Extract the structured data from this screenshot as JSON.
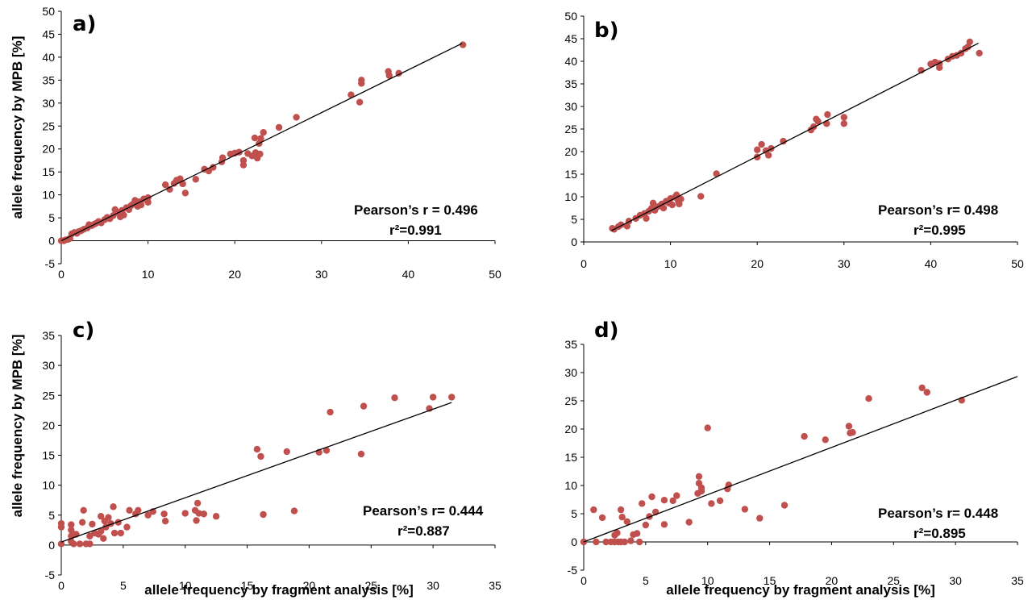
{
  "figure": {
    "ylabel_top": "allele frequency by MPB [%]",
    "ylabel_bottom": "allele frequency by MPB [%]",
    "xlabel_c": "allele frequency by fragment analysis [%]",
    "xlabel_d": "allele frequency by fragment analysis [%]"
  },
  "chart_data": [
    {
      "type": "scatter",
      "panel": "a)",
      "pearson": "Pearson’s r = 0.496",
      "r2": "r²=0.991",
      "xlim": [
        0,
        50
      ],
      "ylim": [
        -5,
        50
      ],
      "xticks": [
        0,
        10,
        20,
        30,
        40,
        50
      ],
      "yticks": [
        -5,
        0,
        5,
        10,
        15,
        20,
        25,
        30,
        35,
        40,
        45,
        50
      ],
      "point_color": "#c0504d",
      "trendline": [
        [
          0,
          0
        ],
        [
          46.2,
          43.0
        ]
      ],
      "points": [
        [
          0,
          0
        ],
        [
          0.3,
          0
        ],
        [
          0.5,
          0.2
        ],
        [
          0.8,
          0.3
        ],
        [
          1,
          0.5
        ],
        [
          1.2,
          1.5
        ],
        [
          1.5,
          1.8
        ],
        [
          1.8,
          1.6
        ],
        [
          2,
          2
        ],
        [
          2.3,
          2.2
        ],
        [
          2.6,
          2.5
        ],
        [
          3,
          2.8
        ],
        [
          3.2,
          3.5
        ],
        [
          3.5,
          3.3
        ],
        [
          3.8,
          3.6
        ],
        [
          4,
          3.8
        ],
        [
          4.3,
          4.2
        ],
        [
          4.6,
          3.9
        ],
        [
          5,
          4.6
        ],
        [
          5.3,
          5.1
        ],
        [
          5.6,
          4.8
        ],
        [
          6,
          5.5
        ],
        [
          6.2,
          6.8
        ],
        [
          6.5,
          6.2
        ],
        [
          6.8,
          5.2
        ],
        [
          7,
          6.6
        ],
        [
          7.2,
          5.6
        ],
        [
          7.5,
          7.2
        ],
        [
          7.8,
          6.8
        ],
        [
          8,
          7.6
        ],
        [
          8.2,
          7.9
        ],
        [
          8.5,
          8.8
        ],
        [
          8.8,
          7.5
        ],
        [
          9,
          8.5
        ],
        [
          9.2,
          7.8
        ],
        [
          9.5,
          9.1
        ],
        [
          10,
          8.4
        ],
        [
          10,
          9.4
        ],
        [
          12,
          12.2
        ],
        [
          12.5,
          11.2
        ],
        [
          13,
          12.5
        ],
        [
          13.3,
          13.2
        ],
        [
          13.7,
          13.5
        ],
        [
          14,
          12.4
        ],
        [
          14.3,
          10.4
        ],
        [
          15.5,
          13.4
        ],
        [
          16.5,
          15.6
        ],
        [
          17,
          15.2
        ],
        [
          17.5,
          16
        ],
        [
          18.5,
          17.2
        ],
        [
          18.6,
          18.1
        ],
        [
          19.5,
          18.9
        ],
        [
          20,
          19.1
        ],
        [
          20.5,
          19.3
        ],
        [
          21,
          16.5
        ],
        [
          21,
          17.5
        ],
        [
          21.5,
          19
        ],
        [
          22,
          18.5
        ],
        [
          22.4,
          19.2
        ],
        [
          22.6,
          18
        ],
        [
          22.9,
          18.9
        ],
        [
          22.3,
          22.4
        ],
        [
          22.8,
          21.2
        ],
        [
          23,
          22.3
        ],
        [
          23.3,
          23.6
        ],
        [
          25.1,
          24.7
        ],
        [
          27.1,
          26.9
        ],
        [
          33.4,
          31.8
        ],
        [
          34.4,
          30.2
        ],
        [
          34.6,
          34.3
        ],
        [
          34.6,
          35
        ],
        [
          37.7,
          36.9
        ],
        [
          37.8,
          36
        ],
        [
          38.9,
          36.5
        ],
        [
          46.3,
          42.7
        ]
      ]
    },
    {
      "type": "scatter",
      "panel": "b)",
      "pearson": "Pearson’s r= 0.498",
      "r2": "r²=0.995",
      "xlim": [
        0,
        50
      ],
      "ylim": [
        0,
        50
      ],
      "xticks": [
        0,
        10,
        20,
        30,
        40,
        50
      ],
      "yticks": [
        0,
        5,
        10,
        15,
        20,
        25,
        30,
        35,
        40,
        45,
        50
      ],
      "point_color": "#c0504d",
      "trendline": [
        [
          3.2,
          2.5
        ],
        [
          45.5,
          44.0
        ]
      ],
      "points": [
        [
          3.3,
          3
        ],
        [
          3.5,
          2.8
        ],
        [
          4,
          3.4
        ],
        [
          4.3,
          3.8
        ],
        [
          5,
          3.5
        ],
        [
          5.2,
          4.6
        ],
        [
          6,
          5.2
        ],
        [
          6.5,
          5.9
        ],
        [
          7,
          6.3
        ],
        [
          7.2,
          5.2
        ],
        [
          7.5,
          6.8
        ],
        [
          7.8,
          7.4
        ],
        [
          8,
          8.6
        ],
        [
          8.2,
          7
        ],
        [
          8.5,
          7.8
        ],
        [
          8.8,
          8
        ],
        [
          9,
          8.4
        ],
        [
          9.2,
          7.5
        ],
        [
          9.5,
          9
        ],
        [
          9.8,
          8.6
        ],
        [
          10,
          9.6
        ],
        [
          10.2,
          8.2
        ],
        [
          10.5,
          9.9
        ],
        [
          10.7,
          10.4
        ],
        [
          10.9,
          9
        ],
        [
          11,
          8.4
        ],
        [
          11.2,
          9.5
        ],
        [
          13.5,
          10.1
        ],
        [
          15.3,
          15.1
        ],
        [
          20,
          18.8
        ],
        [
          20,
          20.4
        ],
        [
          20.5,
          21.6
        ],
        [
          21,
          20.2
        ],
        [
          21.3,
          19.2
        ],
        [
          21.6,
          20.7
        ],
        [
          23,
          22.3
        ],
        [
          26.2,
          24.8
        ],
        [
          26.5,
          25.5
        ],
        [
          26.8,
          27.2
        ],
        [
          27,
          26.7
        ],
        [
          28,
          26.2
        ],
        [
          28.1,
          28.2
        ],
        [
          30,
          26.2
        ],
        [
          30,
          27.6
        ],
        [
          38.9,
          38
        ],
        [
          40,
          39.4
        ],
        [
          40.5,
          39.8
        ],
        [
          41,
          38.6
        ],
        [
          41,
          39.5
        ],
        [
          42,
          40.5
        ],
        [
          42.5,
          41.1
        ],
        [
          43,
          41.3
        ],
        [
          43.5,
          41.8
        ],
        [
          44,
          42.8
        ],
        [
          44.3,
          43.2
        ],
        [
          44.5,
          44.3
        ],
        [
          45.6,
          41.8
        ]
      ]
    },
    {
      "type": "scatter",
      "panel": "c)",
      "pearson": "Pearson’s r= 0.444",
      "r2": "r²=0.887",
      "xlabel": "allele frequency by fragment analysis [%]",
      "xlim": [
        0,
        35
      ],
      "ylim": [
        -5,
        35
      ],
      "xticks": [
        0,
        5,
        10,
        15,
        20,
        25,
        30,
        35
      ],
      "yticks": [
        -5,
        0,
        5,
        10,
        15,
        20,
        25,
        30,
        35
      ],
      "point_color": "#c0504d",
      "trendline": [
        [
          0,
          0.5
        ],
        [
          31.5,
          23.8
        ]
      ],
      "points": [
        [
          0,
          0.2
        ],
        [
          0,
          3
        ],
        [
          0,
          3.6
        ],
        [
          0.8,
          3.4
        ],
        [
          0.8,
          2.5
        ],
        [
          0.8,
          1.5
        ],
        [
          0.8,
          0.6
        ],
        [
          1,
          0.2
        ],
        [
          1.2,
          1.8
        ],
        [
          1.5,
          0.2
        ],
        [
          1.7,
          3.8
        ],
        [
          1.8,
          5.8
        ],
        [
          2,
          0.2
        ],
        [
          2.3,
          1.5
        ],
        [
          2.3,
          0.2
        ],
        [
          2.5,
          3.5
        ],
        [
          2.7,
          2
        ],
        [
          3,
          1.8
        ],
        [
          3.2,
          4.8
        ],
        [
          3.2,
          2.3
        ],
        [
          3.4,
          1.1
        ],
        [
          3.5,
          4
        ],
        [
          3.6,
          3
        ],
        [
          3.8,
          4.6
        ],
        [
          4,
          3.6
        ],
        [
          4.2,
          6.4
        ],
        [
          4.3,
          2
        ],
        [
          4.6,
          3.8
        ],
        [
          4.8,
          2
        ],
        [
          5.3,
          3
        ],
        [
          5.5,
          5.8
        ],
        [
          6,
          5.2
        ],
        [
          6.2,
          5.8
        ],
        [
          7,
          5
        ],
        [
          7.4,
          5.6
        ],
        [
          8.3,
          5.2
        ],
        [
          8.4,
          4
        ],
        [
          10,
          5.3
        ],
        [
          10.8,
          5.8
        ],
        [
          10.9,
          4.1
        ],
        [
          11,
          7
        ],
        [
          11.1,
          5.3
        ],
        [
          11.5,
          5.2
        ],
        [
          12.5,
          4.8
        ],
        [
          15.8,
          16
        ],
        [
          16.1,
          14.8
        ],
        [
          16.3,
          5.1
        ],
        [
          18.2,
          15.6
        ],
        [
          18.8,
          5.7
        ],
        [
          20.8,
          15.5
        ],
        [
          21.4,
          15.8
        ],
        [
          21.7,
          22.2
        ],
        [
          24.2,
          15.2
        ],
        [
          24.4,
          23.2
        ],
        [
          26.9,
          24.6
        ],
        [
          29.7,
          22.8
        ],
        [
          30,
          24.7
        ],
        [
          31.5,
          24.7
        ]
      ]
    },
    {
      "type": "scatter",
      "panel": "d)",
      "pearson": "Pearson’s r= 0.448",
      "r2": "r²=0.895",
      "xlabel": "allele frequency by fragment analysis [%]",
      "xlim": [
        0,
        35
      ],
      "ylim": [
        -5,
        35
      ],
      "xticks": [
        0,
        5,
        10,
        15,
        20,
        25,
        30,
        35
      ],
      "yticks": [
        -5,
        0,
        5,
        10,
        15,
        20,
        25,
        30,
        35
      ],
      "point_color": "#c0504d",
      "trendline": [
        [
          0,
          0
        ],
        [
          35,
          29.3
        ]
      ],
      "points": [
        [
          0,
          0
        ],
        [
          0.8,
          5.7
        ],
        [
          1,
          0
        ],
        [
          1.5,
          4.3
        ],
        [
          1.8,
          0
        ],
        [
          2.2,
          0
        ],
        [
          2.5,
          1.2
        ],
        [
          2.5,
          0
        ],
        [
          2.7,
          1.6
        ],
        [
          2.8,
          0
        ],
        [
          3,
          0
        ],
        [
          3,
          5.7
        ],
        [
          3.1,
          4.4
        ],
        [
          3.3,
          0
        ],
        [
          3.5,
          3.6
        ],
        [
          3.8,
          0.2
        ],
        [
          4,
          1.3
        ],
        [
          4.3,
          1.5
        ],
        [
          4.5,
          0
        ],
        [
          4.7,
          6.8
        ],
        [
          5,
          3
        ],
        [
          5.3,
          4.5
        ],
        [
          5.5,
          8
        ],
        [
          5.8,
          5.3
        ],
        [
          6.5,
          7.4
        ],
        [
          6.5,
          3.1
        ],
        [
          7.2,
          7.3
        ],
        [
          7.5,
          8.2
        ],
        [
          8.5,
          3.5
        ],
        [
          9.2,
          8.6
        ],
        [
          9.3,
          11.6
        ],
        [
          9.3,
          10.4
        ],
        [
          9.5,
          9.6
        ],
        [
          9.5,
          9
        ],
        [
          10,
          20.2
        ],
        [
          10.3,
          6.8
        ],
        [
          11,
          7.3
        ],
        [
          11.6,
          9.4
        ],
        [
          11.7,
          10.1
        ],
        [
          13,
          5.8
        ],
        [
          14.2,
          4.2
        ],
        [
          16.2,
          6.5
        ],
        [
          17.8,
          18.7
        ],
        [
          19.5,
          18.1
        ],
        [
          21.4,
          20.5
        ],
        [
          21.5,
          19.3
        ],
        [
          21.7,
          19.4
        ],
        [
          23,
          25.4
        ],
        [
          27.3,
          27.3
        ],
        [
          27.7,
          26.5
        ],
        [
          30.5,
          25.1
        ]
      ]
    }
  ]
}
